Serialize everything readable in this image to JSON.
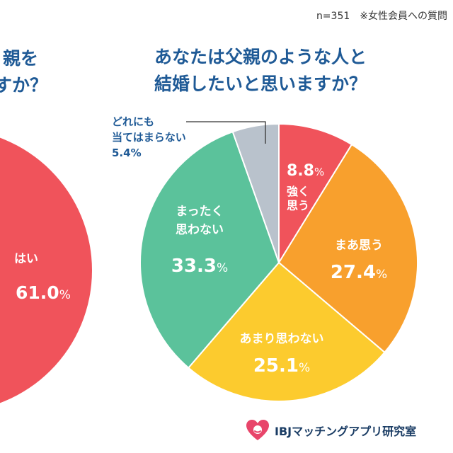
{
  "note": "n=351　※女性会員への質問",
  "left_chart": {
    "title_line1": "親を",
    "title_line2": "すか？",
    "label": "はい",
    "value_text": "61.0%"
  },
  "chart_data": {
    "type": "pie",
    "title_line1": "あなたは父親のような人と",
    "title_line2": "結婚したいと思いますか？",
    "slices": [
      {
        "label": "強く思う",
        "value": 8.8,
        "color": "#f0535b"
      },
      {
        "label": "まあ思う",
        "value": 27.4,
        "color": "#f8a02d"
      },
      {
        "label": "あまり思わない",
        "value": 25.1,
        "color": "#fccb2e"
      },
      {
        "label": "まったく思わない",
        "value": 33.3,
        "color": "#5bc29b"
      },
      {
        "label": "どれにも当てはまらない",
        "value": 5.4,
        "color": "#b9c2cc"
      }
    ]
  },
  "footer": {
    "brand": "IBJマッチングアプリ研究室",
    "accent": "#e8456a"
  }
}
